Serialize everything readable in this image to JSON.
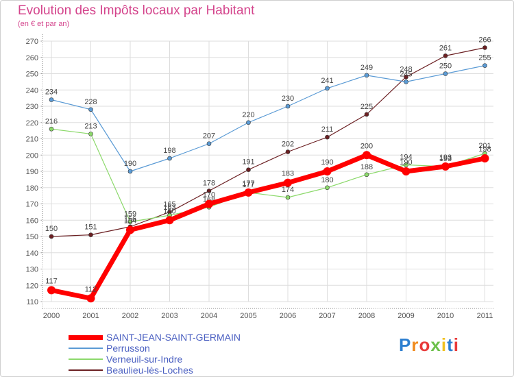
{
  "chart_data": {
    "type": "line",
    "title": "Evolution des Impôts locaux par Habitant",
    "subtitle": "(en € et par an)",
    "categories": [
      "2000",
      "2001",
      "2002",
      "2003",
      "2004",
      "2005",
      "2006",
      "2007",
      "2008",
      "2009",
      "2010",
      "2011"
    ],
    "ylim": [
      110,
      270
    ],
    "yticks": [
      110,
      120,
      130,
      140,
      150,
      160,
      170,
      180,
      190,
      200,
      210,
      220,
      230,
      240,
      250,
      260,
      270
    ],
    "grid": true,
    "series": [
      {
        "name": "Beaulieu-lès-Loches",
        "color": "#6b1f22",
        "values": [
          150,
          151,
          156,
          165,
          178,
          191,
          202,
          211,
          225,
          248,
          261,
          266
        ]
      },
      {
        "name": "Perrusson",
        "color": "#5b9bd5",
        "values": [
          234,
          228,
          190,
          198,
          207,
          220,
          230,
          241,
          249,
          245,
          250,
          255
        ]
      },
      {
        "name": "Verneuil-sur-Indre",
        "color": "#8cd96b",
        "values": [
          216,
          213,
          159,
          163,
          168,
          177,
          174,
          180,
          188,
          194,
          193,
          201
        ]
      },
      {
        "name": "SAINT-JEAN-SAINT-GERMAIN",
        "color": "#ff0000",
        "values": [
          117,
          112,
          154,
          160,
          170,
          177,
          183,
          190,
          200,
          190,
          193,
          198
        ]
      }
    ],
    "legend": [
      "SAINT-JEAN-SAINT-GERMAIN",
      "Perrusson",
      "Verneuil-sur-Indre",
      "Beaulieu-lès-Loches"
    ]
  },
  "brand": {
    "logo_letters": [
      "P",
      "r",
      "o",
      "x",
      "i",
      "t",
      "i"
    ]
  }
}
